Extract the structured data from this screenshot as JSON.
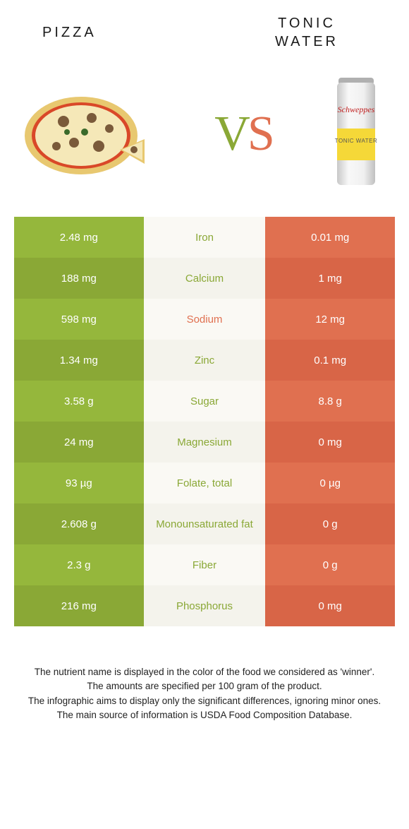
{
  "title_left": "PIZZA",
  "title_right_line1": "TONIC",
  "title_right_line2": "WATER",
  "vs_v": "V",
  "vs_s": "S",
  "colors": {
    "green": "#95b73c",
    "green_alt": "#8aa836",
    "orange": "#e07050",
    "orange_alt": "#d86547",
    "mid_bg": "#faf9f4",
    "mid_bg_alt": "#f4f3ec",
    "green_text": "#8aa836",
    "orange_text": "#e07050"
  },
  "rows": [
    {
      "left": "2.48 mg",
      "label": "Iron",
      "right": "0.01 mg",
      "winner": "left"
    },
    {
      "left": "188 mg",
      "label": "Calcium",
      "right": "1 mg",
      "winner": "left"
    },
    {
      "left": "598 mg",
      "label": "Sodium",
      "right": "12 mg",
      "winner": "right"
    },
    {
      "left": "1.34 mg",
      "label": "Zinc",
      "right": "0.1 mg",
      "winner": "left"
    },
    {
      "left": "3.58 g",
      "label": "Sugar",
      "right": "8.8 g",
      "winner": "left"
    },
    {
      "left": "24 mg",
      "label": "Magnesium",
      "right": "0 mg",
      "winner": "left"
    },
    {
      "left": "93 µg",
      "label": "Folate, total",
      "right": "0 µg",
      "winner": "left"
    },
    {
      "left": "2.608 g",
      "label": "Monounsaturated fat",
      "right": "0 g",
      "winner": "left"
    },
    {
      "left": "2.3 g",
      "label": "Fiber",
      "right": "0 g",
      "winner": "left"
    },
    {
      "left": "216 mg",
      "label": "Phosphorus",
      "right": "0 mg",
      "winner": "left"
    }
  ],
  "footnotes": [
    "The nutrient name is displayed in the color of the food we considered as 'winner'.",
    "The amounts are specified per 100 gram of the product.",
    "The infographic aims to display only the significant differences, ignoring minor ones.",
    "The main source of information is USDA Food Composition Database."
  ]
}
